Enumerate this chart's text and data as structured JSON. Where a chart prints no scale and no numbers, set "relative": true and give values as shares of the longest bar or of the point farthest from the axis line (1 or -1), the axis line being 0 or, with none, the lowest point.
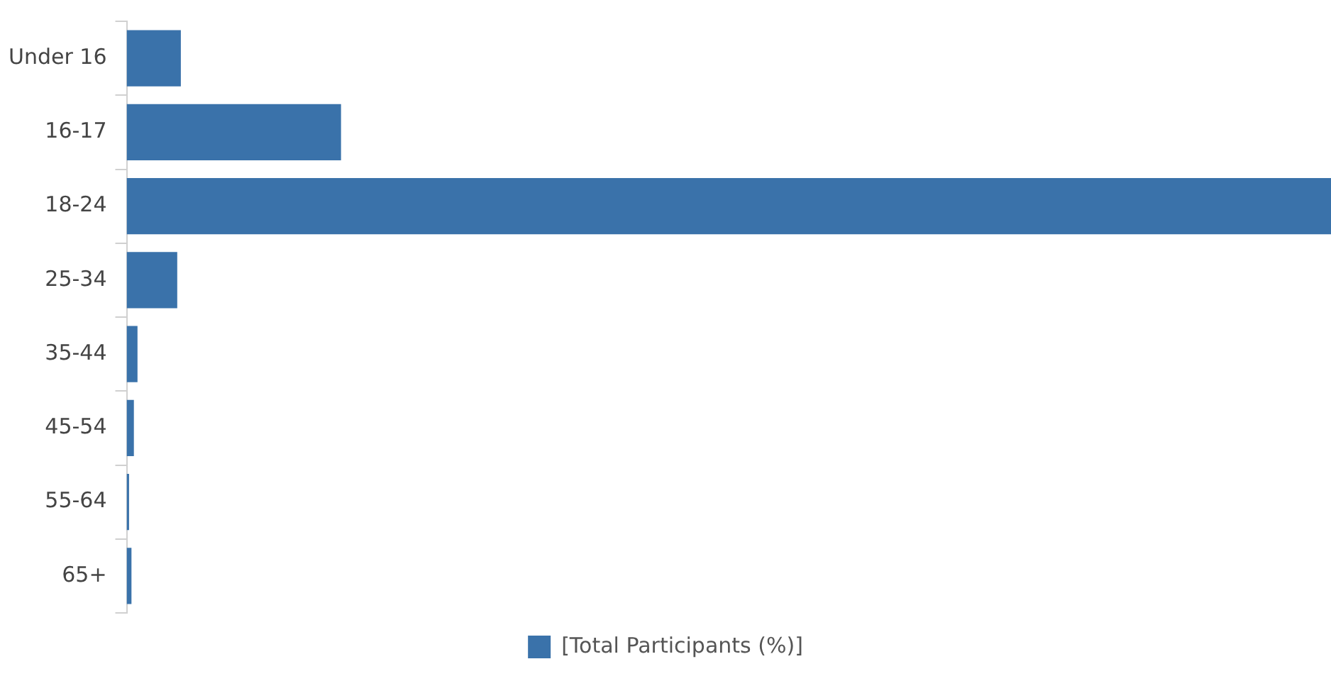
{
  "chart_data": {
    "type": "bar",
    "orientation": "horizontal",
    "relative": true,
    "categories": [
      "Under 16",
      "16-17",
      "18-24",
      "25-34",
      "35-44",
      "45-54",
      "55-64",
      "65+"
    ],
    "series": [
      {
        "name": "[Total Participants (%)]",
        "color": "#3a72aa",
        "values": [
          0.045,
          0.178,
          1,
          0.042,
          0.009,
          0.006,
          0.002,
          0.004
        ]
      }
    ],
    "grid": false,
    "legend": "bottom"
  }
}
